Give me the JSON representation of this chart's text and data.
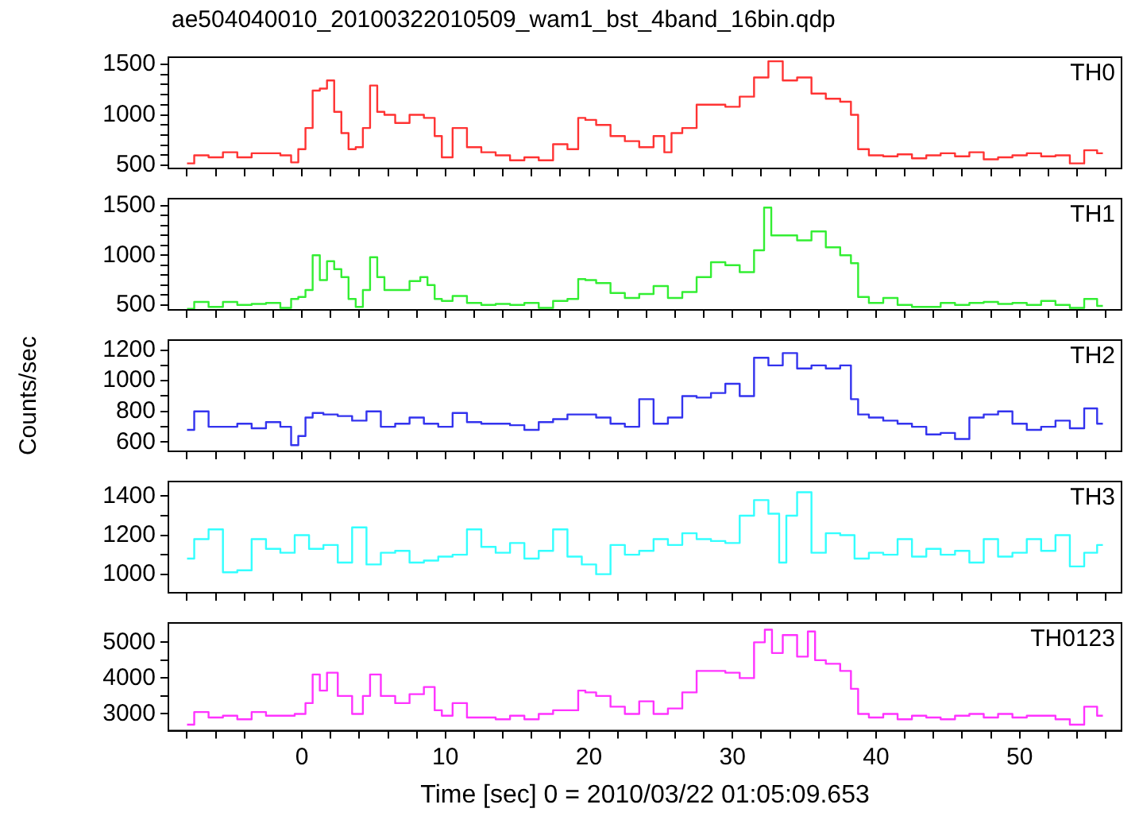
{
  "chart_data": [
    {
      "type": "step",
      "title": "ae504040010_20100322010509_wam1_bst_4band_16bin.qdp",
      "tick_labels": "y",
      "xlim": [
        -9.3,
        57.1
      ],
      "ylim": [
        470,
        1570
      ],
      "xticks": [
        {
          "value": -8,
          "label": null
        },
        {
          "value": -6,
          "label": null
        },
        {
          "value": -4,
          "label": null
        },
        {
          "value": -2,
          "label": null
        },
        {
          "value": 0,
          "label": null
        },
        {
          "value": 2,
          "label": null
        },
        {
          "value": 4,
          "label": null
        },
        {
          "value": 6,
          "label": null
        },
        {
          "value": 8,
          "label": null
        },
        {
          "value": 10,
          "label": null
        },
        {
          "value": 12,
          "label": null
        },
        {
          "value": 14,
          "label": null
        },
        {
          "value": 16,
          "label": null
        },
        {
          "value": 18,
          "label": null
        },
        {
          "value": 20,
          "label": null
        },
        {
          "value": 22,
          "label": null
        },
        {
          "value": 24,
          "label": null
        },
        {
          "value": 26,
          "label": null
        },
        {
          "value": 28,
          "label": null
        },
        {
          "value": 30,
          "label": null
        },
        {
          "value": 32,
          "label": null
        },
        {
          "value": 34,
          "label": null
        },
        {
          "value": 36,
          "label": null
        },
        {
          "value": 38,
          "label": null
        },
        {
          "value": 40,
          "label": null
        },
        {
          "value": 42,
          "label": null
        },
        {
          "value": 44,
          "label": null
        },
        {
          "value": 46,
          "label": null
        },
        {
          "value": 48,
          "label": null
        },
        {
          "value": 50,
          "label": null
        },
        {
          "value": 52,
          "label": null
        },
        {
          "value": 54,
          "label": null
        },
        {
          "value": 56,
          "label": null
        }
      ],
      "yticks": [
        500,
        {
          "value": 600,
          "label": null
        },
        {
          "value": 700,
          "label": null
        },
        {
          "value": 800,
          "label": null
        },
        {
          "value": 900,
          "label": null
        },
        1000,
        {
          "value": 1100,
          "label": null
        },
        {
          "value": 1200,
          "label": null
        },
        {
          "value": 1300,
          "label": null
        },
        {
          "value": 1400,
          "label": null
        },
        1500
      ],
      "x": [
        -8,
        -7,
        -6,
        -5,
        -4,
        -3,
        -2,
        -1,
        -0.5,
        0,
        0.5,
        1,
        1.5,
        2,
        2.5,
        3,
        3.5,
        4,
        4.5,
        5,
        5.5,
        6,
        7,
        8,
        9,
        9.5,
        10,
        11,
        12,
        13,
        14,
        15,
        16,
        17,
        18,
        19,
        19.5,
        20,
        21,
        22,
        23,
        24,
        25,
        25.5,
        26,
        27,
        28,
        29,
        30,
        31,
        32,
        33,
        34,
        35,
        36,
        37,
        38,
        38.5,
        39,
        40,
        41,
        42,
        43,
        44,
        45,
        46,
        47,
        48,
        49,
        50,
        51,
        52,
        53,
        54,
        55,
        55.8
      ],
      "series": [
        {
          "name": "TH0",
          "color": "#ff3333",
          "values": [
            520,
            600,
            580,
            630,
            580,
            620,
            620,
            600,
            530,
            660,
            870,
            1240,
            1260,
            1340,
            1030,
            820,
            660,
            680,
            870,
            1290,
            1030,
            1000,
            920,
            1000,
            970,
            790,
            580,
            870,
            680,
            630,
            600,
            550,
            580,
            550,
            710,
            660,
            970,
            950,
            900,
            790,
            740,
            680,
            790,
            630,
            820,
            870,
            1100,
            1100,
            1080,
            1180,
            1370,
            1530,
            1340,
            1370,
            1210,
            1160,
            1130,
            1000,
            660,
            600,
            590,
            610,
            570,
            600,
            620,
            590,
            630,
            560,
            580,
            600,
            620,
            590,
            600,
            520,
            650,
            620
          ]
        }
      ]
    },
    {
      "type": "step",
      "tick_labels": "y",
      "xlim": [
        -9.3,
        57.1
      ],
      "ylim": [
        450,
        1570
      ],
      "xticks": [
        {
          "value": -8,
          "label": null
        },
        {
          "value": -6,
          "label": null
        },
        {
          "value": -4,
          "label": null
        },
        {
          "value": -2,
          "label": null
        },
        {
          "value": 0,
          "label": null
        },
        {
          "value": 2,
          "label": null
        },
        {
          "value": 4,
          "label": null
        },
        {
          "value": 6,
          "label": null
        },
        {
          "value": 8,
          "label": null
        },
        {
          "value": 10,
          "label": null
        },
        {
          "value": 12,
          "label": null
        },
        {
          "value": 14,
          "label": null
        },
        {
          "value": 16,
          "label": null
        },
        {
          "value": 18,
          "label": null
        },
        {
          "value": 20,
          "label": null
        },
        {
          "value": 22,
          "label": null
        },
        {
          "value": 24,
          "label": null
        },
        {
          "value": 26,
          "label": null
        },
        {
          "value": 28,
          "label": null
        },
        {
          "value": 30,
          "label": null
        },
        {
          "value": 32,
          "label": null
        },
        {
          "value": 34,
          "label": null
        },
        {
          "value": 36,
          "label": null
        },
        {
          "value": 38,
          "label": null
        },
        {
          "value": 40,
          "label": null
        },
        {
          "value": 42,
          "label": null
        },
        {
          "value": 44,
          "label": null
        },
        {
          "value": 46,
          "label": null
        },
        {
          "value": 48,
          "label": null
        },
        {
          "value": 50,
          "label": null
        },
        {
          "value": 52,
          "label": null
        },
        {
          "value": 54,
          "label": null
        },
        {
          "value": 56,
          "label": null
        }
      ],
      "yticks": [
        500,
        {
          "value": 600,
          "label": null
        },
        {
          "value": 700,
          "label": null
        },
        {
          "value": 800,
          "label": null
        },
        {
          "value": 900,
          "label": null
        },
        1000,
        {
          "value": 1100,
          "label": null
        },
        {
          "value": 1200,
          "label": null
        },
        {
          "value": 1300,
          "label": null
        },
        {
          "value": 1400,
          "label": null
        },
        1500
      ],
      "x": [
        -8,
        -7,
        -6,
        -5,
        -4,
        -3,
        -2,
        -1,
        -0.5,
        0,
        0.5,
        1,
        1.5,
        2,
        2.5,
        3,
        3.5,
        4,
        4.5,
        5,
        5.5,
        6,
        7,
        8,
        8.5,
        9,
        9.5,
        10,
        11,
        12,
        13,
        14,
        15,
        16,
        17,
        18,
        19,
        19.5,
        20,
        21,
        22,
        23,
        24,
        25,
        26,
        27,
        28,
        29,
        30,
        31,
        32,
        32.4,
        33,
        34,
        35,
        36,
        37,
        38,
        38.5,
        39,
        40,
        41,
        42,
        43,
        44,
        45,
        46,
        47,
        48,
        49,
        50,
        51,
        52,
        53,
        54,
        55,
        55.8
      ],
      "series": [
        {
          "name": "TH1",
          "color": "#33ee33",
          "values": [
            460,
            530,
            480,
            530,
            500,
            510,
            520,
            470,
            560,
            580,
            650,
            1000,
            750,
            940,
            860,
            780,
            560,
            480,
            650,
            980,
            780,
            650,
            650,
            740,
            780,
            700,
            560,
            540,
            590,
            520,
            500,
            510,
            500,
            520,
            470,
            540,
            560,
            760,
            750,
            720,
            620,
            570,
            610,
            690,
            570,
            630,
            780,
            930,
            900,
            830,
            1050,
            1480,
            1200,
            1200,
            1150,
            1240,
            1080,
            1000,
            920,
            580,
            520,
            570,
            500,
            480,
            480,
            520,
            500,
            520,
            530,
            510,
            520,
            500,
            540,
            500,
            470,
            560,
            490
          ]
        }
      ]
    },
    {
      "type": "step",
      "tick_labels": "y",
      "ylabel": "Counts/sec",
      "xlim": [
        -9.3,
        57.1
      ],
      "ylim": [
        540,
        1265
      ],
      "xticks": [
        {
          "value": -8,
          "label": null
        },
        {
          "value": -6,
          "label": null
        },
        {
          "value": -4,
          "label": null
        },
        {
          "value": -2,
          "label": null
        },
        {
          "value": 0,
          "label": null
        },
        {
          "value": 2,
          "label": null
        },
        {
          "value": 4,
          "label": null
        },
        {
          "value": 6,
          "label": null
        },
        {
          "value": 8,
          "label": null
        },
        {
          "value": 10,
          "label": null
        },
        {
          "value": 12,
          "label": null
        },
        {
          "value": 14,
          "label": null
        },
        {
          "value": 16,
          "label": null
        },
        {
          "value": 18,
          "label": null
        },
        {
          "value": 20,
          "label": null
        },
        {
          "value": 22,
          "label": null
        },
        {
          "value": 24,
          "label": null
        },
        {
          "value": 26,
          "label": null
        },
        {
          "value": 28,
          "label": null
        },
        {
          "value": 30,
          "label": null
        },
        {
          "value": 32,
          "label": null
        },
        {
          "value": 34,
          "label": null
        },
        {
          "value": 36,
          "label": null
        },
        {
          "value": 38,
          "label": null
        },
        {
          "value": 40,
          "label": null
        },
        {
          "value": 42,
          "label": null
        },
        {
          "value": 44,
          "label": null
        },
        {
          "value": 46,
          "label": null
        },
        {
          "value": 48,
          "label": null
        },
        {
          "value": 50,
          "label": null
        },
        {
          "value": 52,
          "label": null
        },
        {
          "value": 54,
          "label": null
        },
        {
          "value": 56,
          "label": null
        }
      ],
      "yticks": [
        600,
        {
          "value": 700,
          "label": null
        },
        800,
        {
          "value": 900,
          "label": null
        },
        1000,
        {
          "value": 1100,
          "label": null
        },
        1200
      ],
      "x": [
        -8,
        -7,
        -6,
        -5,
        -4,
        -3,
        -2,
        -1,
        -0.5,
        0,
        0.5,
        1,
        2,
        3,
        4,
        5,
        6,
        7,
        8,
        9,
        10,
        11,
        12,
        13,
        14,
        15,
        16,
        17,
        18,
        19,
        20,
        21,
        22,
        23,
        24,
        25,
        26,
        27,
        28,
        29,
        30,
        31,
        32,
        33,
        34,
        35,
        36,
        37,
        38,
        38.5,
        39,
        40,
        41,
        42,
        43,
        44,
        45,
        46,
        47,
        48,
        49,
        50,
        51,
        52,
        53,
        54,
        55,
        55.8
      ],
      "series": [
        {
          "name": "TH2",
          "color": "#3333ee",
          "values": [
            680,
            800,
            700,
            700,
            720,
            690,
            730,
            700,
            580,
            640,
            760,
            790,
            780,
            770,
            740,
            800,
            700,
            720,
            760,
            720,
            700,
            790,
            730,
            720,
            720,
            710,
            680,
            730,
            750,
            780,
            780,
            760,
            720,
            700,
            880,
            720,
            760,
            900,
            890,
            920,
            980,
            900,
            1150,
            1100,
            1180,
            1080,
            1100,
            1080,
            1100,
            880,
            780,
            760,
            740,
            720,
            700,
            650,
            660,
            620,
            760,
            780,
            800,
            720,
            680,
            700,
            740,
            690,
            820,
            720
          ]
        }
      ]
    },
    {
      "type": "step",
      "tick_labels": "y",
      "xlim": [
        -9.3,
        57.1
      ],
      "ylim": [
        905,
        1475
      ],
      "xticks": [
        {
          "value": -8,
          "label": null
        },
        {
          "value": -6,
          "label": null
        },
        {
          "value": -4,
          "label": null
        },
        {
          "value": -2,
          "label": null
        },
        {
          "value": 0,
          "label": null
        },
        {
          "value": 2,
          "label": null
        },
        {
          "value": 4,
          "label": null
        },
        {
          "value": 6,
          "label": null
        },
        {
          "value": 8,
          "label": null
        },
        {
          "value": 10,
          "label": null
        },
        {
          "value": 12,
          "label": null
        },
        {
          "value": 14,
          "label": null
        },
        {
          "value": 16,
          "label": null
        },
        {
          "value": 18,
          "label": null
        },
        {
          "value": 20,
          "label": null
        },
        {
          "value": 22,
          "label": null
        },
        {
          "value": 24,
          "label": null
        },
        {
          "value": 26,
          "label": null
        },
        {
          "value": 28,
          "label": null
        },
        {
          "value": 30,
          "label": null
        },
        {
          "value": 32,
          "label": null
        },
        {
          "value": 34,
          "label": null
        },
        {
          "value": 36,
          "label": null
        },
        {
          "value": 38,
          "label": null
        },
        {
          "value": 40,
          "label": null
        },
        {
          "value": 42,
          "label": null
        },
        {
          "value": 44,
          "label": null
        },
        {
          "value": 46,
          "label": null
        },
        {
          "value": 48,
          "label": null
        },
        {
          "value": 50,
          "label": null
        },
        {
          "value": 52,
          "label": null
        },
        {
          "value": 54,
          "label": null
        },
        {
          "value": 56,
          "label": null
        }
      ],
      "yticks": [
        1000,
        {
          "value": 1100,
          "label": null
        },
        1200,
        {
          "value": 1300,
          "label": null
        },
        1400
      ],
      "x": [
        -8,
        -7,
        -6,
        -5,
        -4,
        -3,
        -2,
        -1,
        0,
        1,
        2,
        3,
        4,
        5,
        6,
        7,
        8,
        9,
        10,
        11,
        12,
        13,
        14,
        15,
        16,
        17,
        18,
        19,
        20,
        21,
        22,
        23,
        24,
        25,
        26,
        27,
        28,
        29,
        30,
        31,
        32,
        33,
        33.5,
        34,
        35,
        36,
        37,
        38,
        39,
        40,
        41,
        42,
        43,
        44,
        45,
        46,
        47,
        48,
        49,
        50,
        51,
        52,
        53,
        54,
        55,
        55.8
      ],
      "series": [
        {
          "name": "TH3",
          "color": "#33ffff",
          "values": [
            1080,
            1180,
            1230,
            1010,
            1020,
            1180,
            1130,
            1110,
            1200,
            1130,
            1150,
            1060,
            1240,
            1050,
            1110,
            1120,
            1060,
            1070,
            1090,
            1100,
            1230,
            1140,
            1110,
            1160,
            1080,
            1120,
            1230,
            1090,
            1050,
            1000,
            1150,
            1100,
            1120,
            1180,
            1150,
            1210,
            1180,
            1170,
            1160,
            1300,
            1380,
            1310,
            1060,
            1300,
            1420,
            1110,
            1210,
            1200,
            1080,
            1110,
            1100,
            1180,
            1090,
            1130,
            1100,
            1120,
            1060,
            1180,
            1090,
            1110,
            1180,
            1120,
            1200,
            1040,
            1110,
            1150
          ]
        }
      ]
    },
    {
      "type": "step",
      "xlabel": "Time [sec] 0 = 2010/03/22 01:05:09.653",
      "xlim": [
        -9.3,
        57.1
      ],
      "ylim": [
        2530,
        5540
      ],
      "xticks": [
        {
          "value": -8,
          "label": null
        },
        {
          "value": -6,
          "label": null
        },
        {
          "value": -4,
          "label": null
        },
        {
          "value": -2,
          "label": null
        },
        0,
        {
          "value": 2,
          "label": null
        },
        {
          "value": 4,
          "label": null
        },
        {
          "value": 6,
          "label": null
        },
        {
          "value": 8,
          "label": null
        },
        10,
        {
          "value": 12,
          "label": null
        },
        {
          "value": 14,
          "label": null
        },
        {
          "value": 16,
          "label": null
        },
        {
          "value": 18,
          "label": null
        },
        20,
        {
          "value": 22,
          "label": null
        },
        {
          "value": 24,
          "label": null
        },
        {
          "value": 26,
          "label": null
        },
        {
          "value": 28,
          "label": null
        },
        30,
        {
          "value": 32,
          "label": null
        },
        {
          "value": 34,
          "label": null
        },
        {
          "value": 36,
          "label": null
        },
        {
          "value": 38,
          "label": null
        },
        40,
        {
          "value": 42,
          "label": null
        },
        {
          "value": 44,
          "label": null
        },
        {
          "value": 46,
          "label": null
        },
        {
          "value": 48,
          "label": null
        },
        50,
        {
          "value": 52,
          "label": null
        },
        {
          "value": 54,
          "label": null
        },
        {
          "value": 56,
          "label": null
        }
      ],
      "yticks": [
        3000,
        {
          "value": 3500,
          "label": null
        },
        4000,
        {
          "value": 4500,
          "label": null
        },
        5000
      ],
      "x": [
        -8,
        -7,
        -6,
        -5,
        -4,
        -3,
        -2,
        -1,
        0,
        0.5,
        1,
        1.5,
        2,
        3,
        4,
        4.5,
        5,
        6,
        7,
        8,
        9,
        9.5,
        10,
        11,
        12,
        13,
        14,
        15,
        16,
        17,
        18,
        19,
        19.5,
        20,
        21,
        22,
        23,
        24,
        25,
        26,
        27,
        28,
        29,
        30,
        31,
        32,
        32.5,
        33,
        34,
        35,
        35.5,
        36,
        37,
        38,
        38.5,
        39,
        40,
        41,
        42,
        43,
        44,
        45,
        46,
        47,
        48,
        49,
        50,
        51,
        52,
        53,
        54,
        55,
        55.8
      ],
      "series": [
        {
          "name": "TH0123",
          "color": "#ff33ff",
          "values": [
            2700,
            3050,
            2900,
            2950,
            2850,
            3050,
            2950,
            2950,
            3000,
            3300,
            4100,
            3650,
            4150,
            3500,
            3000,
            3500,
            4100,
            3500,
            3300,
            3550,
            3750,
            3100,
            2950,
            3300,
            2900,
            2900,
            2850,
            2950,
            2850,
            3000,
            3100,
            3100,
            3650,
            3600,
            3500,
            3200,
            3000,
            3350,
            3000,
            3150,
            3600,
            4200,
            4200,
            4150,
            4000,
            5000,
            5350,
            4700,
            5200,
            4600,
            5300,
            4500,
            4400,
            4200,
            3700,
            3000,
            2900,
            3000,
            2850,
            2950,
            2900,
            2850,
            2950,
            3000,
            2900,
            3000,
            2900,
            2950,
            2950,
            2850,
            2700,
            3200,
            2950
          ]
        }
      ]
    }
  ]
}
